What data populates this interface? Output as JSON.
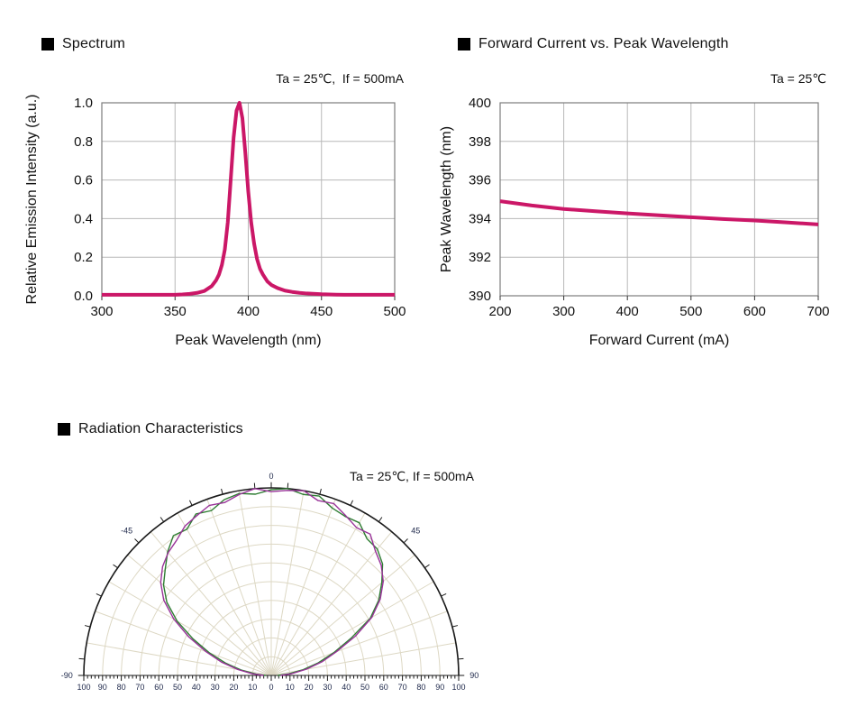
{
  "icons": {
    "section_marker": "black-square"
  },
  "colors": {
    "curve_pink": "#cb1767",
    "curve_green": "#2e7d32",
    "curve_purple": "#993399",
    "grid_gray": "#b8b8b8",
    "border_gray": "#7d7d7d",
    "polar_grid": "#ddd8c4",
    "polar_axis": "#1a1a1a",
    "polar_label": "#202a4c",
    "text": "#111111"
  },
  "chart_data": [
    {
      "id": "spectrum",
      "type": "line",
      "title": "Spectrum",
      "condition": "Ta = 25℃,  If = 500mA",
      "xlabel": "Peak Wavelength (nm)",
      "ylabel": "Relative Emission Intensity (a.u.)",
      "xlim": [
        300,
        500
      ],
      "ylim": [
        0,
        1
      ],
      "xticks": [
        300,
        350,
        400,
        450,
        500
      ],
      "yticks": [
        0.0,
        0.2,
        0.4,
        0.6,
        0.8,
        1.0
      ],
      "ytick_labels": [
        "0.0",
        "0.2",
        "0.4",
        "0.6",
        "0.8",
        "1.0"
      ],
      "grid": true,
      "line_color": "#cb1767",
      "points": [
        [
          300,
          0.005
        ],
        [
          310,
          0.005
        ],
        [
          320,
          0.005
        ],
        [
          330,
          0.005
        ],
        [
          340,
          0.005
        ],
        [
          350,
          0.005
        ],
        [
          355,
          0.007
        ],
        [
          360,
          0.01
        ],
        [
          365,
          0.015
        ],
        [
          370,
          0.025
        ],
        [
          375,
          0.05
        ],
        [
          378,
          0.08
        ],
        [
          380,
          0.11
        ],
        [
          382,
          0.16
        ],
        [
          384,
          0.24
        ],
        [
          386,
          0.38
        ],
        [
          388,
          0.6
        ],
        [
          390,
          0.82
        ],
        [
          392,
          0.96
        ],
        [
          394,
          1.0
        ],
        [
          396,
          0.92
        ],
        [
          398,
          0.74
        ],
        [
          400,
          0.54
        ],
        [
          402,
          0.38
        ],
        [
          404,
          0.27
        ],
        [
          406,
          0.19
        ],
        [
          408,
          0.14
        ],
        [
          410,
          0.11
        ],
        [
          413,
          0.075
        ],
        [
          416,
          0.055
        ],
        [
          420,
          0.04
        ],
        [
          425,
          0.027
        ],
        [
          430,
          0.02
        ],
        [
          435,
          0.015
        ],
        [
          440,
          0.012
        ],
        [
          450,
          0.008
        ],
        [
          460,
          0.006
        ],
        [
          470,
          0.005
        ],
        [
          480,
          0.005
        ],
        [
          490,
          0.005
        ],
        [
          500,
          0.005
        ]
      ]
    },
    {
      "id": "forward-current",
      "type": "line",
      "title": "Forward Current vs. Peak Wavelength",
      "condition": "Ta = 25℃",
      "xlabel": "Forward Current (mA)",
      "ylabel": "Peak Wavelength (nm)",
      "xlim": [
        200,
        700
      ],
      "ylim": [
        390,
        400
      ],
      "xticks": [
        200,
        300,
        400,
        500,
        600,
        700
      ],
      "yticks": [
        390,
        392,
        394,
        396,
        398,
        400
      ],
      "ytick_labels": [
        "390",
        "392",
        "394",
        "396",
        "398",
        "400"
      ],
      "grid": true,
      "line_color": "#cb1767",
      "points": [
        [
          200,
          394.9
        ],
        [
          250,
          394.68
        ],
        [
          300,
          394.5
        ],
        [
          350,
          394.38
        ],
        [
          400,
          394.27
        ],
        [
          450,
          394.17
        ],
        [
          500,
          394.07
        ],
        [
          550,
          393.98
        ],
        [
          600,
          393.9
        ],
        [
          650,
          393.8
        ],
        [
          700,
          393.7
        ]
      ]
    },
    {
      "id": "radiation",
      "type": "polar",
      "title": "Radiation Characteristics",
      "condition": "Ta = 25℃, If = 500mA",
      "rlim": [
        0,
        100
      ],
      "radial_grid_step": 10,
      "angle_grid_step_deg": 10,
      "angle_labels": {
        "top": "0",
        "left": "-45",
        "right": "45",
        "axis_left": "-90",
        "axis_right": "90"
      },
      "axis_number_labels": [
        "100",
        "90",
        "80",
        "70",
        "60",
        "50",
        "40",
        "30",
        "20",
        "10",
        "0",
        "10",
        "20",
        "30",
        "40",
        "50",
        "60",
        "70",
        "80",
        "90",
        "100"
      ],
      "series": [
        {
          "name": "radiation-green",
          "color": "#2e7d32",
          "points": [
            [
              -90,
              3
            ],
            [
              -85,
              8
            ],
            [
              -80,
              16
            ],
            [
              -75,
              25
            ],
            [
              -70,
              35
            ],
            [
              -65,
              46
            ],
            [
              -60,
              58
            ],
            [
              -55,
              68
            ],
            [
              -50,
              75
            ],
            [
              -45,
              80
            ],
            [
              -40,
              86
            ],
            [
              -35,
              91
            ],
            [
              -30,
              90
            ],
            [
              -25,
              95
            ],
            [
              -20,
              93.5
            ],
            [
              -15,
              97
            ],
            [
              -10,
              98.5
            ],
            [
              -5,
              97
            ],
            [
              0,
              99
            ],
            [
              5,
              100
            ],
            [
              10,
              98
            ],
            [
              15,
              99
            ],
            [
              20,
              95
            ],
            [
              25,
              93.5
            ],
            [
              30,
              94
            ],
            [
              35,
              89
            ],
            [
              40,
              88
            ],
            [
              45,
              84
            ],
            [
              50,
              77
            ],
            [
              55,
              70
            ],
            [
              60,
              61
            ],
            [
              65,
              47
            ],
            [
              70,
              35.5
            ],
            [
              75,
              26
            ],
            [
              80,
              17
            ],
            [
              85,
              9
            ],
            [
              90,
              3.5
            ]
          ]
        },
        {
          "name": "radiation-purple",
          "color": "#993399",
          "points": [
            [
              -90,
              4
            ],
            [
              -85,
              10
            ],
            [
              -80,
              18
            ],
            [
              -75,
              27.5
            ],
            [
              -70,
              37
            ],
            [
              -65,
              48.5
            ],
            [
              -60,
              60
            ],
            [
              -55,
              70
            ],
            [
              -50,
              77
            ],
            [
              -45,
              82
            ],
            [
              -40,
              85.5
            ],
            [
              -35,
              88
            ],
            [
              -30,
              92
            ],
            [
              -25,
              94
            ],
            [
              -20,
              96.5
            ],
            [
              -15,
              95.5
            ],
            [
              -10,
              98
            ],
            [
              -5,
              100
            ],
            [
              0,
              98
            ],
            [
              5,
              99
            ],
            [
              10,
              100
            ],
            [
              15,
              96.5
            ],
            [
              20,
              97.5
            ],
            [
              25,
              94
            ],
            [
              30,
              91
            ],
            [
              35,
              92
            ],
            [
              40,
              86.5
            ],
            [
              45,
              83
            ],
            [
              50,
              78
            ],
            [
              55,
              71
            ],
            [
              60,
              62
            ],
            [
              65,
              49.5
            ],
            [
              70,
              37
            ],
            [
              75,
              28
            ],
            [
              80,
              19
            ],
            [
              85,
              11
            ],
            [
              90,
              5
            ]
          ]
        }
      ]
    }
  ]
}
